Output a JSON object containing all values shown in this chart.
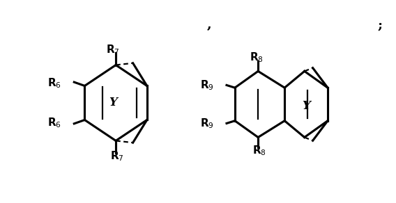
{
  "background_color": "#ffffff",
  "figsize": [
    5.68,
    2.92
  ],
  "dpi": 100,
  "lw": 1.6,
  "fs_label": 11,
  "fs_punct": 14
}
